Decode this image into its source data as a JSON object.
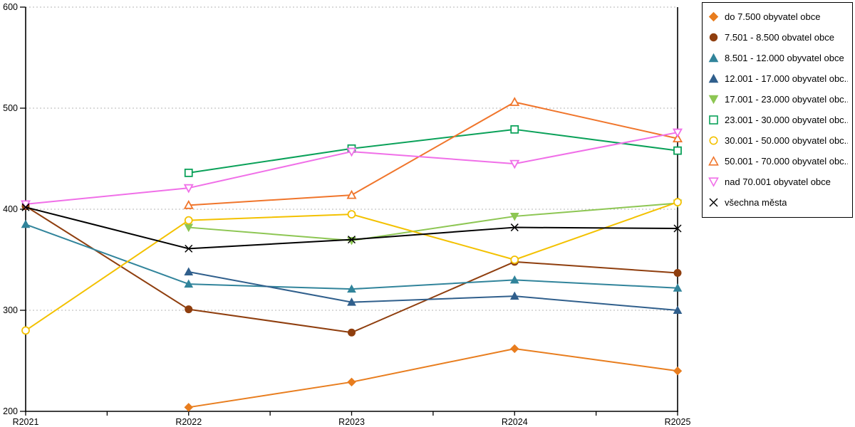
{
  "chart_data": {
    "type": "line",
    "title": "",
    "categories": [
      "R2021",
      "R2022",
      "R2023",
      "R2024",
      "R2025"
    ],
    "y_axis": {
      "min": 200,
      "max": 600,
      "step": 100,
      "tick_labels": [
        "200",
        "300",
        "400",
        "500",
        "600"
      ]
    },
    "grid": "horizontal dotted lines at 300/400/500/600",
    "legend_position": "top-right",
    "series": [
      {
        "id": "do-7500",
        "name": "do 7.500 obyvatel obce",
        "legend_label": "do 7.500 obyvatel obce",
        "color": "#e87d1e",
        "marker": "diamond",
        "marker_style": "filled",
        "values": [
          null,
          204,
          229,
          262,
          240
        ]
      },
      {
        "id": "7501-8500",
        "name": "7.501 - 8.500 obvatel obce",
        "legend_label": "7.501 - 8.500 obvatel obce",
        "color": "#8f3e0e",
        "marker": "circle",
        "marker_style": "filled",
        "values": [
          403,
          301,
          278,
          348,
          337
        ]
      },
      {
        "id": "8501-12000",
        "name": "8.501 - 12.000 obyvatel obce",
        "legend_label": "8.501 - 12.000 obyvatel obce",
        "color": "#31849b",
        "marker": "triangle-up",
        "marker_style": "filled",
        "values": [
          385,
          326,
          321,
          330,
          322
        ]
      },
      {
        "id": "12001-17000",
        "name": "12.001 - 17.000 obyvatel obce",
        "legend_label": "12.001 - 17.000 obyvatel obc...",
        "color": "#305f8c",
        "marker": "triangle-up",
        "marker_style": "filled",
        "values": [
          null,
          338,
          308,
          314,
          300
        ]
      },
      {
        "id": "17001-23000",
        "name": "17.001 - 23.000 obyvatel obce",
        "legend_label": "17.001 - 23.000 obyvatel obc...",
        "color": "#8dc653",
        "marker": "triangle-down",
        "marker_style": "filled",
        "values": [
          null,
          382,
          369,
          393,
          406
        ]
      },
      {
        "id": "23001-30000",
        "name": "23.001 - 30.000 obyvatel obce",
        "legend_label": "23.001 - 30.000 obyvatel obc...",
        "color": "#0aa159",
        "marker": "square",
        "marker_style": "hollow",
        "values": [
          null,
          436,
          460,
          479,
          458
        ]
      },
      {
        "id": "30001-50000",
        "name": "30.001 - 50.000 obyvatel obce",
        "legend_label": "30.001 - 50.000 obyvatel obc...",
        "color": "#f3c100",
        "marker": "circle",
        "marker_style": "hollow",
        "values": [
          280,
          389,
          395,
          350,
          407
        ]
      },
      {
        "id": "50001-70000",
        "name": "50.001 - 70.000 obyvatel obce",
        "legend_label": "50.001 - 70.000 obyvatel obc...",
        "color": "#f0752b",
        "marker": "triangle-up",
        "marker_style": "hollow",
        "values": [
          null,
          404,
          414,
          506,
          470
        ]
      },
      {
        "id": "nad-70001",
        "name": "nad 70.001 obyvatel obce",
        "legend_label": "nad 70.001 obyvatel obce",
        "color": "#f06fe8",
        "marker": "triangle-down",
        "marker_style": "hollow",
        "values": [
          405,
          421,
          457,
          445,
          476
        ]
      },
      {
        "id": "vsechna-mesta",
        "name": "všechna města",
        "legend_label": "všechna města",
        "color": "#000000",
        "marker": "x",
        "marker_style": "line",
        "values": [
          402,
          361,
          370,
          382,
          381
        ]
      }
    ],
    "colors": {
      "axis": "#000000",
      "gridline": "#b4b4b4",
      "background": "#ffffff"
    }
  }
}
